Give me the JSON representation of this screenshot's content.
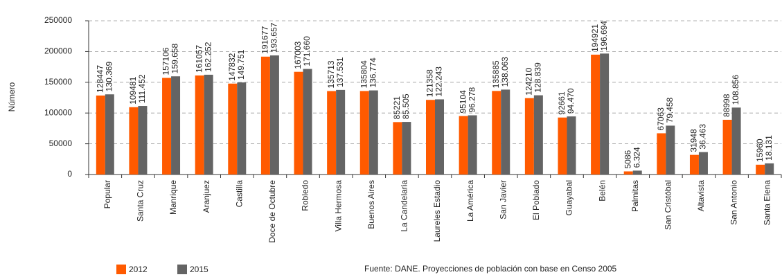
{
  "chart_data": {
    "type": "bar",
    "y_label": "Número",
    "annotation": "Fuente: DANE. Proyecciones de población con base en Censo 2005",
    "categories": [
      "Popular",
      "Santa Cruz",
      "Manrique",
      "Aranjuez",
      "Castilla",
      "Doce de Octubre",
      "Robledo",
      "Villa Hermosa",
      "Buenos Aires",
      "La Candelaria",
      "Laureles Estadio",
      "La América",
      "San Javier",
      "El Poblado",
      "Guayabal",
      "Belén",
      "Palmitas",
      "San Cristóbal",
      "Altavista",
      "San Antonio",
      "Santa Elena"
    ],
    "series": [
      {
        "name": "2012",
        "color": "#ff5a00",
        "values": [
          128447,
          109481,
          157106,
          161057,
          147832,
          191677,
          167003,
          135713,
          135804,
          85221,
          121358,
          95104,
          135885,
          124210,
          92661,
          194921,
          5086,
          67063,
          31948,
          88998,
          15960
        ]
      },
      {
        "name": "2015",
        "color": "#646464",
        "values": [
          130369,
          111452,
          159658,
          162252,
          149751,
          193657,
          171660,
          137531,
          136774,
          85505,
          122243,
          96278,
          138063,
          128839,
          94470,
          196694,
          6324,
          79458,
          36463,
          108856,
          18131
        ],
        "value_labels": [
          "130.369",
          "111.452",
          "159.658",
          "162.252",
          "149.751",
          "193.657",
          "171.660",
          "137.531",
          "136.774",
          "85.505",
          "122.243",
          "96.278",
          "138.063",
          "128.839",
          "94.470",
          "196.694",
          "6.324",
          "79.458",
          "36.463",
          "108.856",
          "18.131"
        ]
      }
    ],
    "ylim": [
      0,
      250000
    ],
    "yticks": [
      0,
      50000,
      100000,
      150000,
      200000,
      250000
    ],
    "grid": true
  }
}
